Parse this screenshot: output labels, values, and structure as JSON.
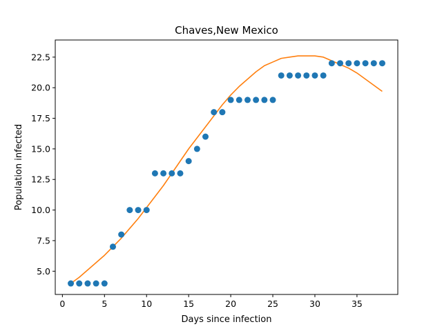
{
  "chart_data": {
    "type": "scatter",
    "title": "Chaves,New Mexico",
    "xlabel": "Days since infection",
    "ylabel": "Population infected",
    "xlim": [
      -0.85,
      39.85
    ],
    "ylim": [
      3.1,
      23.9
    ],
    "xticks": [
      0,
      5,
      10,
      15,
      20,
      25,
      30,
      35
    ],
    "yticks": [
      5.0,
      7.5,
      10.0,
      12.5,
      15.0,
      17.5,
      20.0,
      22.5
    ],
    "xtick_labels": [
      "0",
      "5",
      "10",
      "15",
      "20",
      "25",
      "30",
      "35"
    ],
    "ytick_labels": [
      "5.0",
      "7.5",
      "10.0",
      "12.5",
      "15.0",
      "17.5",
      "20.0",
      "22.5"
    ],
    "grid": false,
    "series": [
      {
        "kind": "scatter",
        "color": "#1f77b4",
        "x": [
          1,
          2,
          3,
          4,
          5,
          6,
          7,
          8,
          9,
          10,
          11,
          12,
          13,
          14,
          15,
          16,
          17,
          18,
          19,
          20,
          21,
          22,
          23,
          24,
          25,
          26,
          27,
          28,
          29,
          30,
          31,
          32,
          33,
          34,
          35,
          36,
          37,
          38
        ],
        "y": [
          4,
          4,
          4,
          4,
          4,
          7,
          8,
          10,
          10,
          10,
          13,
          13,
          13,
          13,
          14,
          15,
          16,
          18,
          18,
          19,
          19,
          19,
          19,
          19,
          19,
          21,
          21,
          21,
          21,
          21,
          21,
          22,
          22,
          22,
          22,
          22,
          22,
          22
        ]
      },
      {
        "kind": "line",
        "color": "#ff7f0e",
        "x": [
          1,
          2,
          3,
          4,
          5,
          6,
          7,
          8,
          9,
          10,
          11,
          12,
          13,
          14,
          15,
          16,
          17,
          18,
          19,
          20,
          21,
          22,
          23,
          24,
          25,
          26,
          27,
          28,
          29,
          30,
          31,
          32,
          33,
          34,
          35,
          36,
          37,
          38
        ],
        "y": [
          4.0,
          4.5,
          5.1,
          5.7,
          6.3,
          7.0,
          7.7,
          8.5,
          9.3,
          10.2,
          11.1,
          12.0,
          13.0,
          14.0,
          15.0,
          15.9,
          16.8,
          17.7,
          18.6,
          19.4,
          20.1,
          20.7,
          21.3,
          21.8,
          22.1,
          22.4,
          22.5,
          22.6,
          22.6,
          22.6,
          22.5,
          22.2,
          21.9,
          21.6,
          21.2,
          20.7,
          20.2,
          19.7
        ]
      }
    ]
  }
}
